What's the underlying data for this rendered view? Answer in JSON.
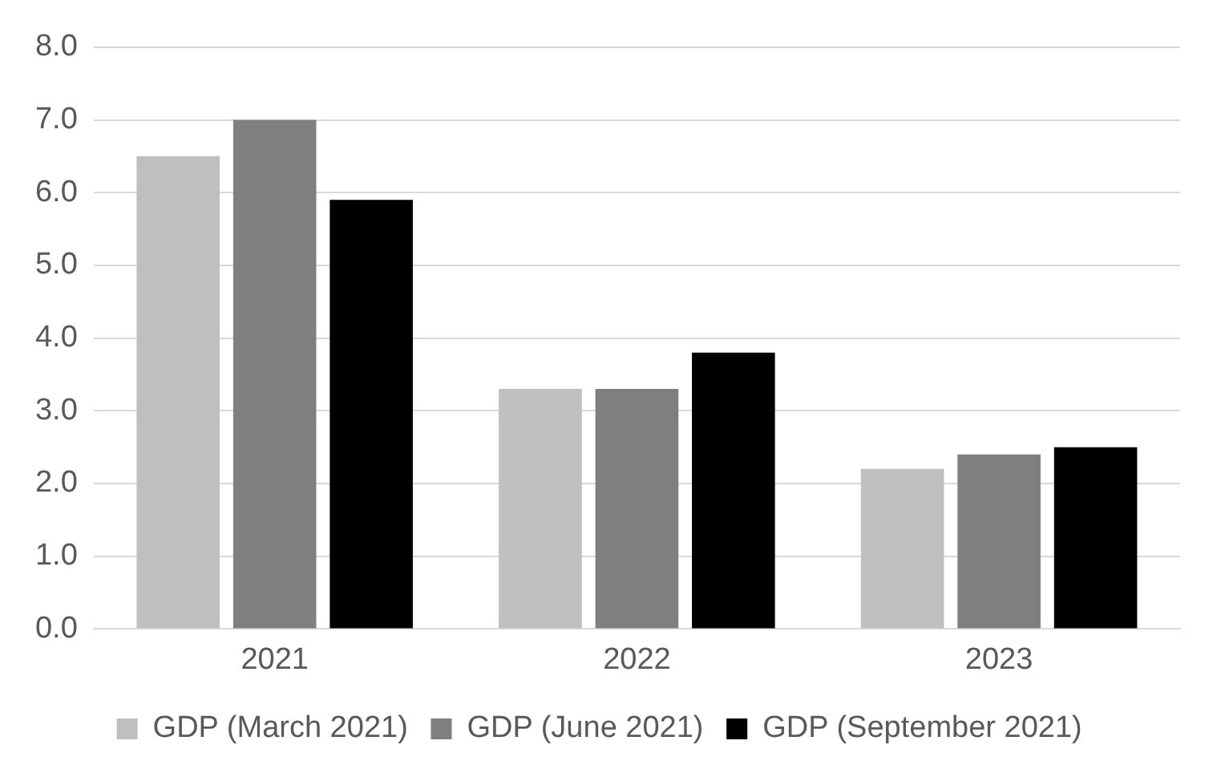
{
  "chart_data": {
    "type": "bar",
    "categories": [
      "2021",
      "2022",
      "2023"
    ],
    "series": [
      {
        "name": "GDP (March 2021)",
        "color": "#bfbfbf",
        "values": [
          6.5,
          3.3,
          2.2
        ]
      },
      {
        "name": "GDP (June 2021)",
        "color": "#7f7f7f",
        "values": [
          7.0,
          3.3,
          2.4
        ]
      },
      {
        "name": "GDP (September 2021)",
        "color": "#000000",
        "values": [
          5.9,
          3.8,
          2.5
        ]
      }
    ],
    "ylim": [
      0,
      8
    ],
    "yticks": [
      {
        "value": 0,
        "label": "0.0"
      },
      {
        "value": 1,
        "label": "1.0"
      },
      {
        "value": 2,
        "label": "2.0"
      },
      {
        "value": 3,
        "label": "3.0"
      },
      {
        "value": 4,
        "label": "4.0"
      },
      {
        "value": 5,
        "label": "5.0"
      },
      {
        "value": 6,
        "label": "6.0"
      },
      {
        "value": 7,
        "label": "7.0"
      },
      {
        "value": 8,
        "label": "8.0"
      }
    ],
    "grid": "y",
    "legend": "bottom"
  }
}
